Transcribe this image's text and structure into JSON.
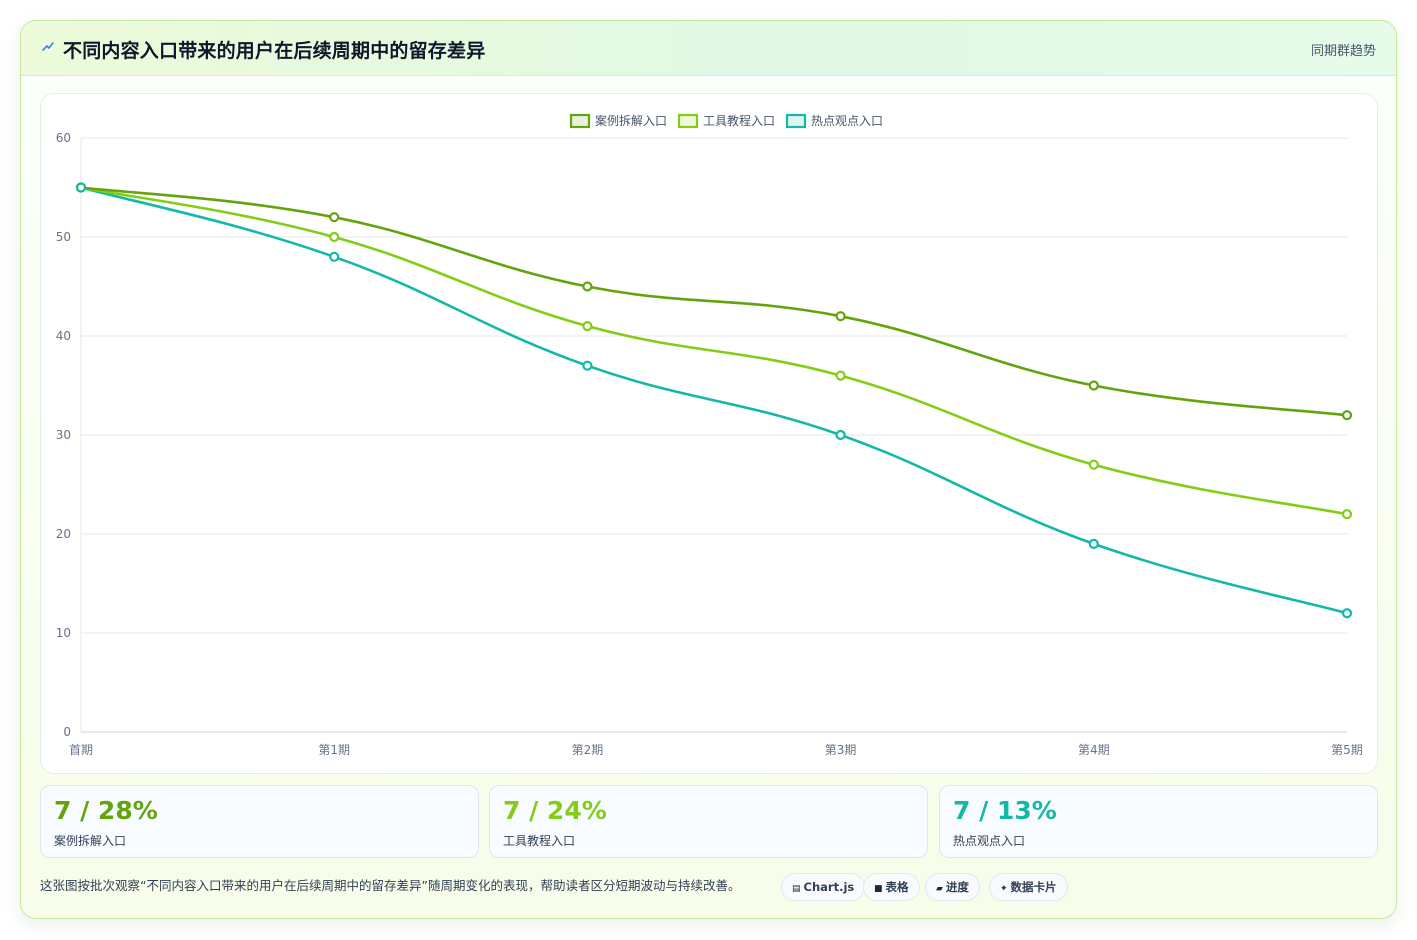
{
  "header": {
    "title": "不同内容入口带来的用户在后续周期中的留存差异",
    "link": "同期群趋势",
    "icon": "bolt-icon"
  },
  "chart_data": {
    "type": "line",
    "title": "",
    "xlabel": "",
    "ylabel": "",
    "categories": [
      "首期",
      "第1期",
      "第2期",
      "第3期",
      "第4期",
      "第5期"
    ],
    "ylim": [
      0,
      60
    ],
    "yticks": [
      0,
      10,
      20,
      30,
      40,
      50,
      60
    ],
    "grid": true,
    "legend": "top-center",
    "curve": "smooth",
    "series": [
      {
        "name": "案例拆解入口",
        "color": "#65a30d",
        "values": [
          55,
          52,
          45,
          42,
          35,
          32
        ]
      },
      {
        "name": "工具教程入口",
        "color": "#84cc16",
        "values": [
          55,
          50,
          41,
          36,
          27,
          22
        ]
      },
      {
        "name": "热点观点入口",
        "color": "#14b8a6",
        "values": [
          55,
          48,
          37,
          30,
          19,
          12
        ]
      }
    ]
  },
  "kpis": [
    {
      "value": "7 / 28%",
      "label": "案例拆解入口",
      "color": "#65a30d"
    },
    {
      "value": "7 / 24%",
      "label": "工具教程入口",
      "color": "#84cc16"
    },
    {
      "value": "7 / 13%",
      "label": "热点观点入口",
      "color": "#14b8a6"
    }
  ],
  "footer": {
    "text": "这张图按批次观察“不同内容入口带来的用户在后续周期中的留存差异”随周期变化的表现，帮助读者区分短期波动与持续改善。",
    "tags": [
      {
        "icon": "▤",
        "label": "Chart.js"
      },
      {
        "icon": "■",
        "label": "表格"
      },
      {
        "icon": "▰",
        "label": "进度"
      },
      {
        "icon": "✦",
        "label": "数据卡片"
      }
    ]
  }
}
